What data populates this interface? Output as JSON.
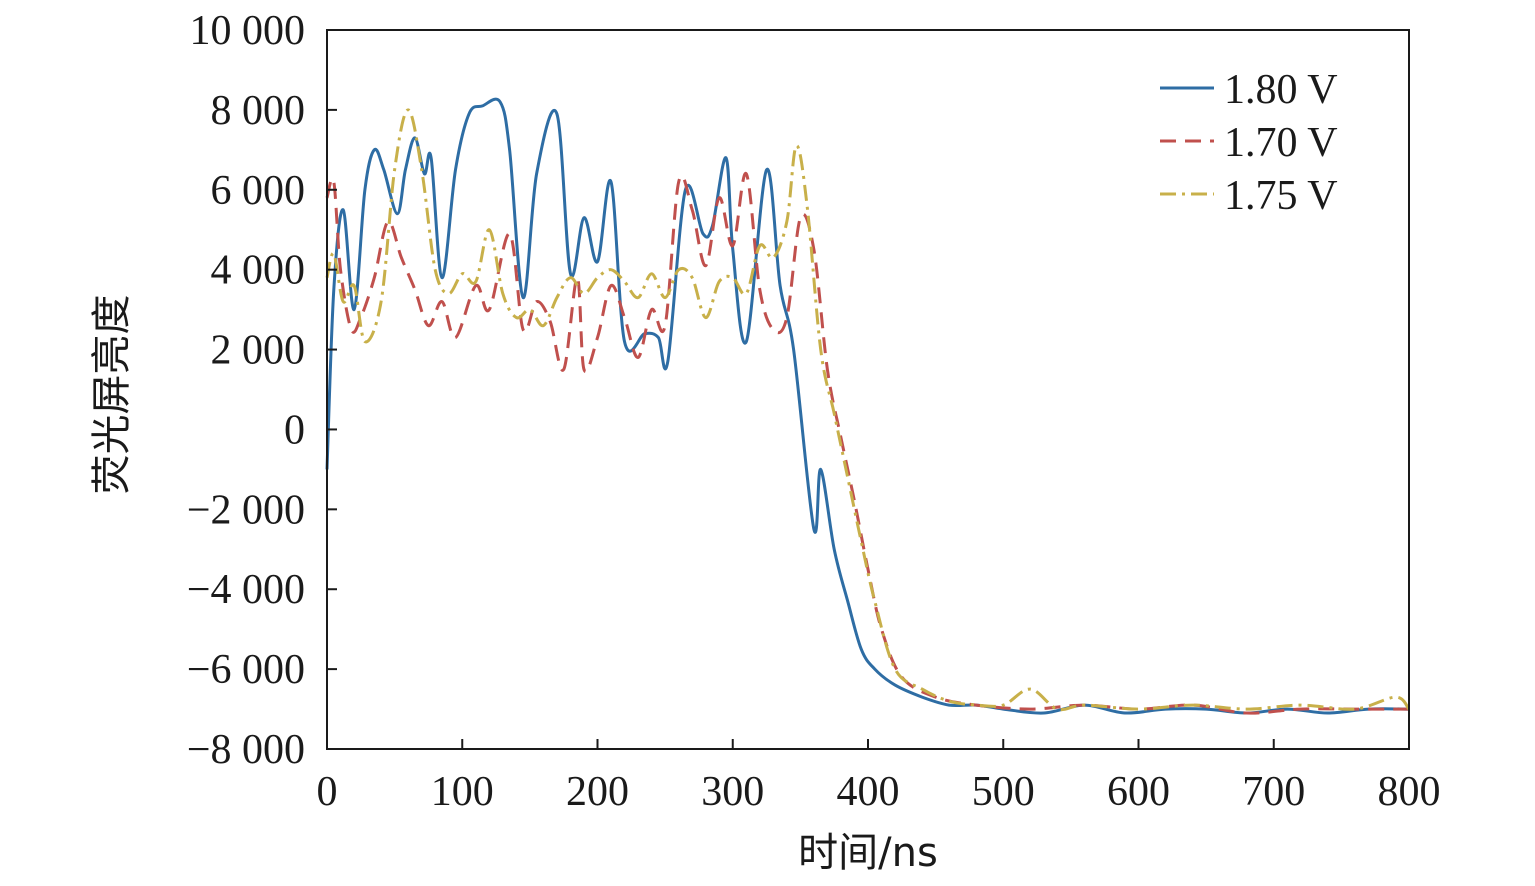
{
  "chart_data": {
    "type": "line",
    "xlabel": "时间/ns",
    "ylabel": "荧光屏亮度",
    "xlim": [
      0,
      800
    ],
    "ylim": [
      -8000,
      10000
    ],
    "x_ticks": [
      0,
      100,
      200,
      300,
      400,
      500,
      600,
      700,
      800
    ],
    "x_tick_labels": [
      "0",
      "100",
      "200",
      "300",
      "400",
      "500",
      "600",
      "700",
      "800"
    ],
    "y_ticks": [
      -8000,
      -6000,
      -4000,
      -2000,
      0,
      2000,
      4000,
      6000,
      8000,
      10000
    ],
    "y_tick_labels": [
      "−8 000",
      "−6 000",
      "−4 000",
      "−2 000",
      "0",
      "2 000",
      "4 000",
      "6 000",
      "8 000",
      "10 000"
    ],
    "grid": false,
    "legend_position": "top-right",
    "series": [
      {
        "name": "1.80 V",
        "color": "#2e6da4",
        "style": "solid",
        "x": [
          0,
          5,
          12,
          20,
          28,
          35,
          42,
          52,
          58,
          65,
          72,
          77,
          85,
          95,
          105,
          115,
          128,
          135,
          145,
          155,
          170,
          180,
          190,
          200,
          210,
          220,
          235,
          245,
          252,
          265,
          278,
          285,
          295,
          300,
          310,
          325,
          335,
          345,
          360,
          365,
          375,
          385,
          395,
          405,
          420,
          440,
          460,
          480,
          500,
          530,
          560,
          590,
          620,
          650,
          680,
          710,
          740,
          770,
          800
        ],
        "y": [
          -1000,
          3500,
          5500,
          3000,
          6000,
          7000,
          6500,
          5400,
          6500,
          7300,
          6400,
          6800,
          3800,
          6500,
          7900,
          8100,
          8200,
          7000,
          3300,
          6400,
          7900,
          3900,
          5300,
          4200,
          6200,
          2200,
          2400,
          2300,
          1700,
          6000,
          4900,
          5100,
          6800,
          4500,
          2200,
          6500,
          3600,
          2000,
          -2500,
          -1000,
          -3000,
          -4300,
          -5500,
          -6000,
          -6400,
          -6700,
          -6900,
          -6900,
          -7000,
          -7100,
          -6900,
          -7100,
          -7000,
          -7000,
          -7100,
          -7000,
          -7100,
          -7000,
          -7000
        ]
      },
      {
        "name": "1.70 V",
        "color": "#c0504d",
        "style": "dashed",
        "x": [
          0,
          5,
          10,
          18,
          25,
          35,
          45,
          55,
          65,
          75,
          85,
          95,
          110,
          120,
          135,
          145,
          155,
          165,
          175,
          185,
          190,
          200,
          210,
          220,
          230,
          240,
          250,
          260,
          270,
          280,
          290,
          300,
          310,
          320,
          330,
          340,
          350,
          360,
          370,
          380,
          390,
          400,
          410,
          425,
          450,
          480,
          520,
          560,
          600,
          640,
          680,
          720,
          760,
          800
        ],
        "y": [
          5800,
          6200,
          4000,
          2500,
          2800,
          3800,
          5200,
          4300,
          3500,
          2600,
          3200,
          2300,
          3600,
          3000,
          4900,
          2500,
          3200,
          2700,
          1500,
          3800,
          1500,
          2300,
          3600,
          2800,
          1800,
          3000,
          2600,
          6200,
          5500,
          4100,
          5800,
          4600,
          6400,
          3500,
          2500,
          2800,
          5300,
          4500,
          1500,
          -200,
          -1800,
          -3500,
          -5000,
          -6200,
          -6700,
          -6900,
          -7000,
          -6900,
          -7000,
          -6900,
          -7100,
          -7000,
          -7000,
          -7000
        ]
      },
      {
        "name": "1.75 V",
        "color": "#c8b04a",
        "style": "dash-dot",
        "x": [
          0,
          5,
          12,
          20,
          28,
          40,
          50,
          60,
          70,
          80,
          90,
          100,
          110,
          120,
          130,
          140,
          150,
          160,
          170,
          180,
          190,
          200,
          210,
          220,
          230,
          240,
          250,
          260,
          270,
          280,
          290,
          300,
          310,
          320,
          330,
          340,
          347,
          355,
          365,
          375,
          385,
          395,
          405,
          420,
          440,
          460,
          480,
          500,
          520,
          540,
          560,
          600,
          640,
          680,
          720,
          760,
          790,
          800
        ],
        "y": [
          3800,
          4400,
          3200,
          3600,
          2200,
          3200,
          6500,
          8000,
          6500,
          4000,
          3400,
          3900,
          3700,
          5000,
          3400,
          2800,
          3000,
          2600,
          3300,
          3800,
          3400,
          3800,
          4000,
          3700,
          3300,
          3900,
          3300,
          4000,
          3800,
          2800,
          3700,
          3800,
          3400,
          4600,
          4300,
          5200,
          7100,
          5600,
          2000,
          400,
          -1200,
          -2800,
          -4300,
          -6000,
          -6500,
          -6800,
          -6900,
          -6900,
          -6500,
          -7000,
          -6900,
          -7000,
          -6900,
          -7000,
          -6900,
          -7000,
          -6700,
          -7000
        ]
      }
    ]
  }
}
